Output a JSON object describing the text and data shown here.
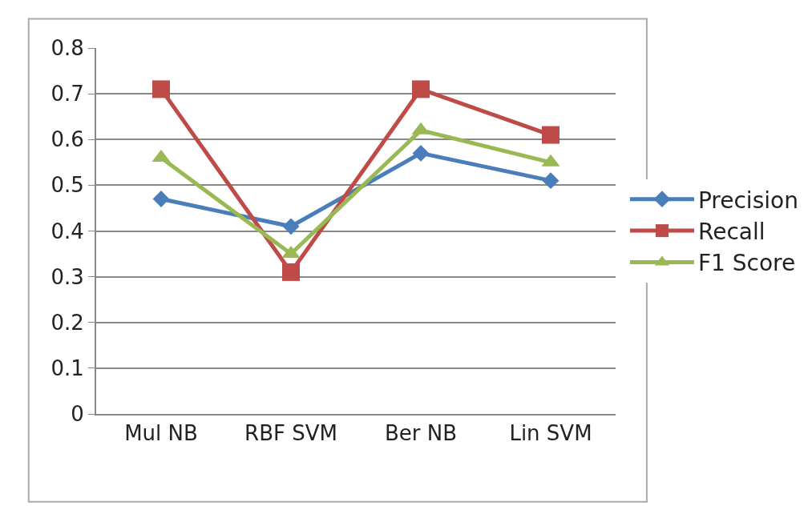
{
  "chart_data": {
    "type": "line",
    "categories": [
      "Mul NB",
      "RBF SVM",
      "Ber NB",
      "Lin SVM"
    ],
    "series": [
      {
        "name": "Precision",
        "color": "#4a7ebb",
        "marker": "diamond",
        "values": [
          0.47,
          0.41,
          0.57,
          0.51
        ]
      },
      {
        "name": "Recall",
        "color": "#be4b48",
        "marker": "square",
        "values": [
          0.71,
          0.31,
          0.71,
          0.61
        ]
      },
      {
        "name": "F1 Score",
        "color": "#98b954",
        "marker": "triangle",
        "values": [
          0.56,
          0.35,
          0.62,
          0.55
        ]
      }
    ],
    "ylim": [
      0,
      0.8
    ],
    "yticks": [
      0,
      0.1,
      0.2,
      0.3,
      0.4,
      0.5,
      0.6,
      0.7,
      0.8
    ],
    "grid": "y",
    "legend": "right",
    "line_style": "solid"
  }
}
